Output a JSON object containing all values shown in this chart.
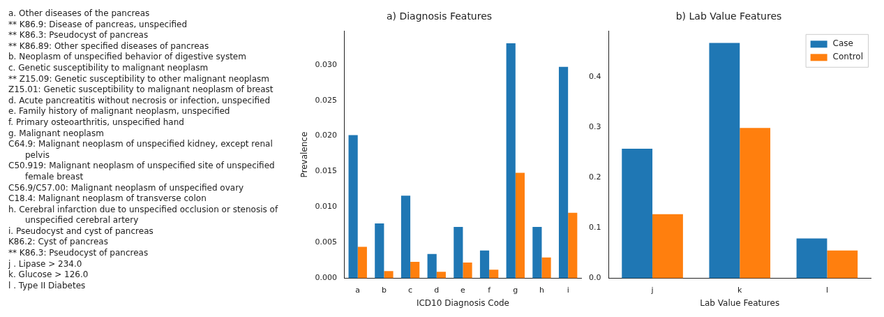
{
  "chart_data": [
    {
      "type": "other",
      "annotations": [
        "a. Other diseases of the pancreas",
        "** K86.9: Disease of pancreas, unspecified",
        "** K86.3: Pseudocyst of pancreas",
        "** K86.89: Other specified diseases of pancreas",
        "b. Neoplasm of unspecified behavior of digestive system",
        "c. Genetic susceptibility to malignant neoplasm",
        "** Z15.09: Genetic susceptibility to other malignant neoplasm",
        "Z15.01: Genetic susceptibility to malignant neoplasm of breast",
        "d. Acute pancreatitis without necrosis or infection, unspecified",
        "e. Family history of malignant neoplasm, unspecified",
        "f. Primary osteoarthritis, unspecified hand",
        "g. Malignant neoplasm",
        "C64.9: Malignant neoplasm of unspecified kidney, except renal pelvis",
        "C50.919: Malignant neoplasm of unspecified site of unspecified female breast",
        "C56.9/C57.00: Malignant neoplasm of unspecified ovary",
        "C18.4: Malignant neoplasm of transverse colon",
        "h. Cerebral infarction due to unspecified occlusion or stenosis of unspecified cerebral artery",
        "i. Pseudocyst and cyst of pancreas",
        "K86.2: Cyst of pancreas",
        "** K86.3: Pseudocyst of pancreas",
        "j . Lipase > 234.0",
        "k. Glucose > 126.0",
        "l . Type II Diabetes"
      ]
    },
    {
      "type": "bar",
      "title": "a) Diagnosis Features",
      "xlabel": "ICD10 Diagnosis Code",
      "ylabel": "Prevalence",
      "categories": [
        "a",
        "b",
        "c",
        "d",
        "e",
        "f",
        "g",
        "h",
        "i"
      ],
      "series": [
        {
          "color": "#1f77b4",
          "values": [
            0.0201,
            0.0077,
            0.0116,
            0.0034,
            0.0072,
            0.0039,
            0.033,
            0.0072,
            0.0297
          ]
        },
        {
          "color": "#ff7f0e",
          "values": [
            0.0044,
            0.001,
            0.0023,
            0.0009,
            0.0022,
            0.0012,
            0.0148,
            0.0029,
            0.0092
          ]
        }
      ],
      "ylim": [
        0,
        0.0347
      ],
      "yticks": [
        {
          "value": 0,
          "label": "0.000"
        },
        {
          "value": 0.005,
          "label": "0.005"
        },
        {
          "value": 0.01,
          "label": "0.010"
        },
        {
          "value": 0.015,
          "label": "0.015"
        },
        {
          "value": 0.02,
          "label": "0.020"
        },
        {
          "value": 0.025,
          "label": "0.025"
        },
        {
          "value": 0.03,
          "label": "0.030"
        }
      ],
      "grid": false
    },
    {
      "type": "bar",
      "title": "b) Lab Value Features",
      "xlabel": "Lab Value Features",
      "categories": [
        "j",
        "k",
        "l"
      ],
      "series": [
        {
          "name": "Case",
          "color": "#1f77b4",
          "values": [
            0.257,
            0.467,
            0.079
          ]
        },
        {
          "name": "Control",
          "color": "#ff7f0e",
          "values": [
            0.127,
            0.298,
            0.055
          ]
        }
      ],
      "ylim": [
        0,
        0.49
      ],
      "yticks": [
        {
          "value": 0,
          "label": "0.0"
        },
        0.1,
        0.2,
        0.3,
        0.4
      ],
      "grid": false,
      "legend": "top right"
    }
  ]
}
